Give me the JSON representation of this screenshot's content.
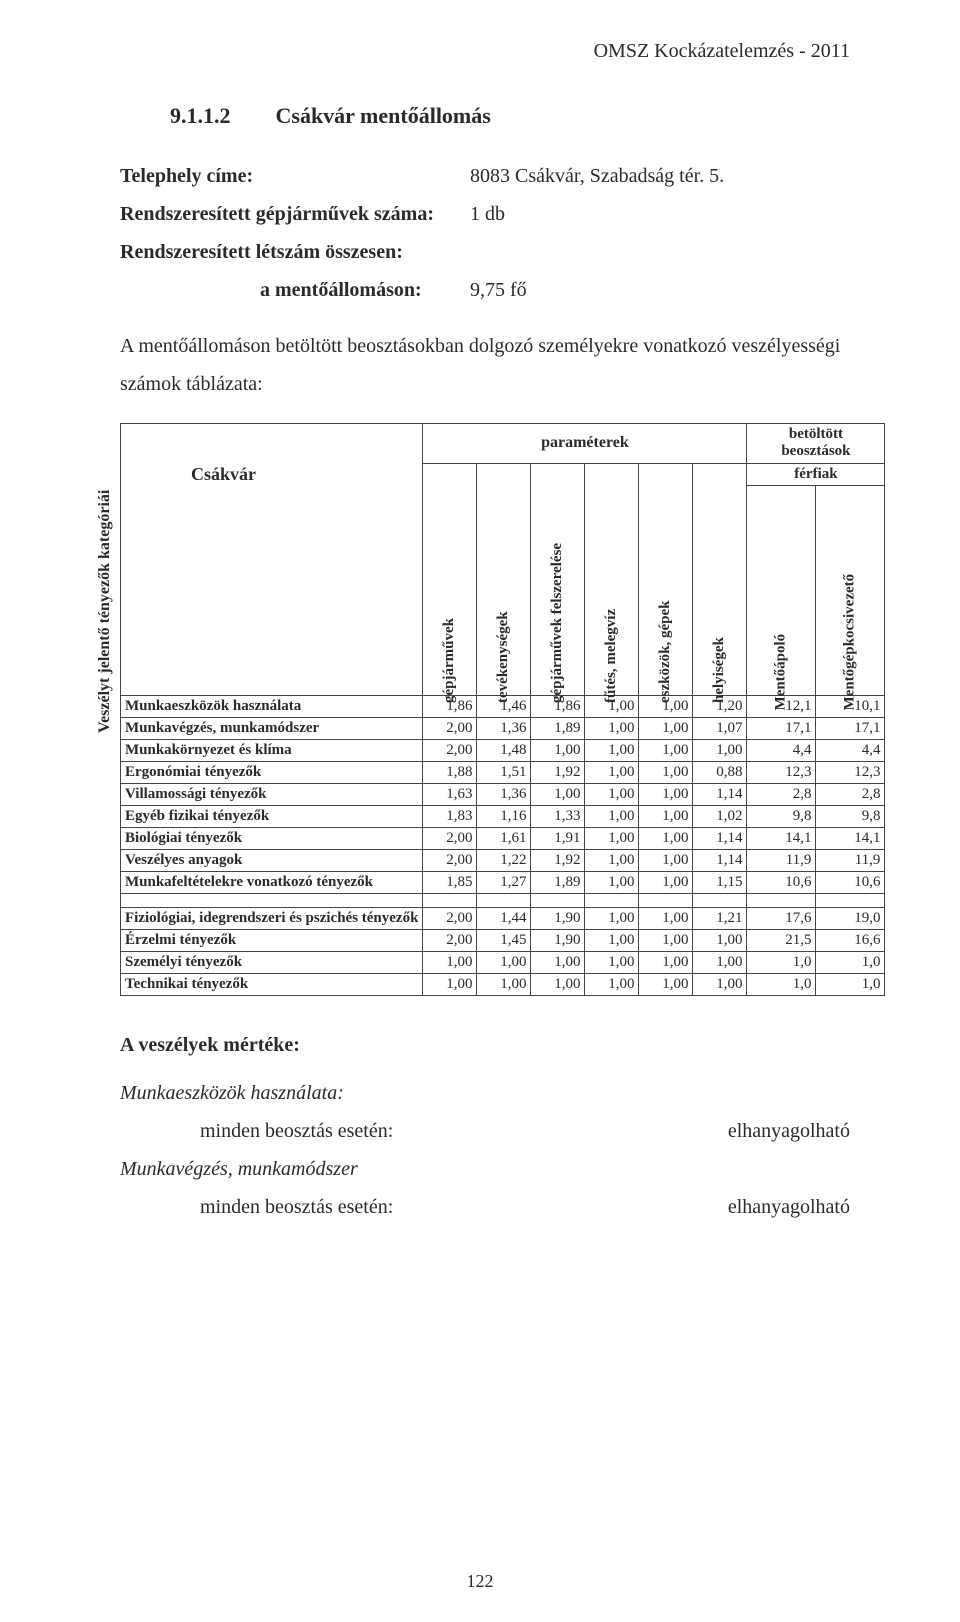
{
  "running_head": "OMSZ Kockázatelemzés - 2011",
  "section_number": "9.1.1.2",
  "section_title": "Csákvár mentőállomás",
  "kv": {
    "site_label": "Telephely címe:",
    "site_value": "8083 Csákvár, Szabadság tér. 5.",
    "vehicles_label": "Rendszeresített gépjárművek száma:",
    "vehicles_value": "1 db",
    "staff_label": "Rendszeresített létszám összesen:",
    "staff_sub_label": "a mentőállomáson:",
    "staff_value": "9,75 fő"
  },
  "intro_para": "A mentőállomáson betöltött beosztásokban dolgozó személyekre vonatkozó veszélyességi számok táblázata:",
  "table": {
    "station_name": "Csákvár",
    "vertical_label": "Veszélyt jelentő tényezők kategóriái",
    "param_header": "paraméterek",
    "bb_header_l1": "betöltött",
    "bb_header_l2": "beosztások",
    "bb_sub": "férfiak",
    "col_labels": [
      "gépjárművek",
      "tevékenységek",
      "gépjárművek felszerelése",
      "fűtés, melegvíz",
      "eszközök, gépek",
      "helyiségek",
      "Mentőápoló",
      "Mentőgépkocsivezető"
    ],
    "rows_a": [
      {
        "label": "Munkaeszközök használata",
        "v": [
          "1,86",
          "1,46",
          "1,86",
          "1,00",
          "1,00",
          "1,20",
          "12,1",
          "10,1"
        ]
      },
      {
        "label": "Munkavégzés, munkamódszer",
        "v": [
          "2,00",
          "1,36",
          "1,89",
          "1,00",
          "1,00",
          "1,07",
          "17,1",
          "17,1"
        ]
      },
      {
        "label": "Munkakörnyezet és klíma",
        "v": [
          "2,00",
          "1,48",
          "1,00",
          "1,00",
          "1,00",
          "1,00",
          "4,4",
          "4,4"
        ]
      },
      {
        "label": "Ergonómiai tényezők",
        "v": [
          "1,88",
          "1,51",
          "1,92",
          "1,00",
          "1,00",
          "0,88",
          "12,3",
          "12,3"
        ]
      },
      {
        "label": "Villamossági tényezők",
        "v": [
          "1,63",
          "1,36",
          "1,00",
          "1,00",
          "1,00",
          "1,14",
          "2,8",
          "2,8"
        ]
      },
      {
        "label": "Egyéb fizikai tényezők",
        "v": [
          "1,83",
          "1,16",
          "1,33",
          "1,00",
          "1,00",
          "1,02",
          "9,8",
          "9,8"
        ]
      },
      {
        "label": "Biológiai tényezők",
        "v": [
          "2,00",
          "1,61",
          "1,91",
          "1,00",
          "1,00",
          "1,14",
          "14,1",
          "14,1"
        ]
      },
      {
        "label": "Veszélyes anyagok",
        "v": [
          "2,00",
          "1,22",
          "1,92",
          "1,00",
          "1,00",
          "1,14",
          "11,9",
          "11,9"
        ]
      },
      {
        "label": "Munkafeltételekre vonatkozó tényezők",
        "v": [
          "1,85",
          "1,27",
          "1,89",
          "1,00",
          "1,00",
          "1,15",
          "10,6",
          "10,6"
        ]
      }
    ],
    "rows_b": [
      {
        "label": "Fiziológiai, idegrendszeri és pszichés tényezők",
        "v": [
          "2,00",
          "1,44",
          "1,90",
          "1,00",
          "1,00",
          "1,21",
          "17,6",
          "19,0"
        ]
      },
      {
        "label": "Érzelmi tényezők",
        "v": [
          "2,00",
          "1,45",
          "1,90",
          "1,00",
          "1,00",
          "1,00",
          "21,5",
          "16,6"
        ]
      },
      {
        "label": "Személyi tényezők",
        "v": [
          "1,00",
          "1,00",
          "1,00",
          "1,00",
          "1,00",
          "1,00",
          "1,0",
          "1,0"
        ]
      },
      {
        "label": "Technikai tényezők",
        "v": [
          "1,00",
          "1,00",
          "1,00",
          "1,00",
          "1,00",
          "1,00",
          "1,0",
          "1,0"
        ]
      }
    ]
  },
  "after": {
    "heading": "A veszélyek mértéke:",
    "item1": "Munkaeszközök használata:",
    "line1_l": "minden beosztás esetén:",
    "line1_r": "elhanyagolható",
    "item2": "Munkavégzés, munkamódszer",
    "line2_l": "minden beosztás esetén:",
    "line2_r": "elhanyagolható"
  },
  "page_number": "122"
}
